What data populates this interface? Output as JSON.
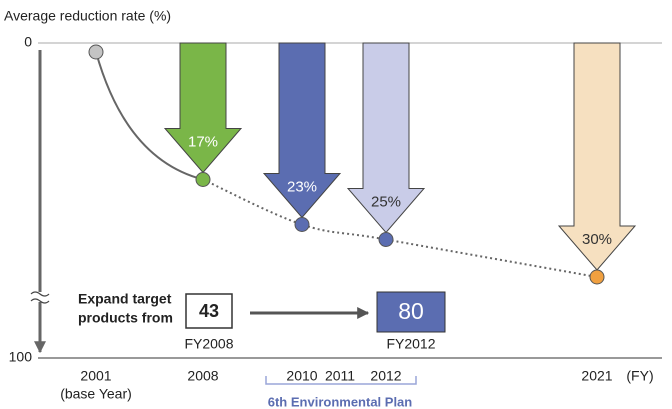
{
  "chart_data": {
    "type": "reduction-arrows",
    "ylabel": "Average reduction rate (%)",
    "ylim": [
      0,
      100
    ],
    "yticks": [
      0,
      100
    ],
    "axis_break": true,
    "categories": [
      "2001",
      "2008",
      "2010",
      "2011",
      "2012",
      "2021"
    ],
    "category_notes": [
      "(base Year)",
      null,
      null,
      null,
      null,
      null
    ],
    "xlabel": "(FY)",
    "values": [
      0,
      17,
      23,
      null,
      25,
      30
    ],
    "value_labels": [
      null,
      "17%",
      "23%",
      null,
      "25%",
      "30%"
    ],
    "point_colors": [
      "#c4c4c4",
      "#7ab648",
      "#5b6db1",
      null,
      "#5b6db1",
      "#f0a040"
    ],
    "arrow_colors": [
      null,
      "#7ab648",
      "#5b6db1",
      null,
      "#c9cce8",
      "#f6e0c0"
    ],
    "label_colors": [
      null,
      "#ffffff",
      "#ffffff",
      null,
      "#333333",
      "#333333"
    ],
    "target": {
      "label_lines": [
        "Expand target",
        "products from"
      ],
      "from": 43,
      "from_label": "FY2008",
      "to": 80,
      "to_label": "FY2012",
      "to_color": "#5b6db1"
    },
    "plan": "6th Environmental Plan"
  }
}
